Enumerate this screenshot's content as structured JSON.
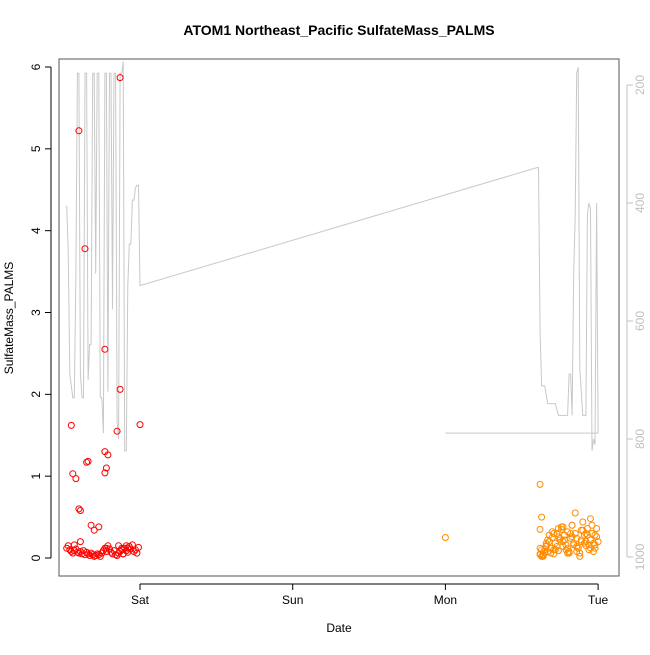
{
  "chart_data": {
    "type": "scatter",
    "title": "ATOM1 Northeast_Pacific SulfateMass_PALMS",
    "xlabel": "Date",
    "ylabel": "SulfateMass_PALMS",
    "x_tick_labels": [
      "Sat",
      "Sun",
      "Mon",
      "Tue"
    ],
    "x_tick_positions_days": [
      1,
      2,
      3,
      4
    ],
    "xlim_days": [
      0.4,
      4.1
    ],
    "ylim": [
      0,
      6
    ],
    "y_ticks": [
      0,
      1,
      2,
      3,
      4,
      5,
      6
    ],
    "y2_ticks": [
      200,
      400,
      600,
      800,
      1000
    ],
    "y2lim": [
      1000,
      170
    ],
    "y2_reversed": true,
    "colors": {
      "series_a": "#ff0000",
      "series_b": "#ff8c00",
      "profile": "#c8c8c8",
      "axis": "#000000",
      "right_axis": "#c0c0c0"
    },
    "series": [
      {
        "x": [
          0.52,
          0.53,
          0.54,
          0.55,
          0.56,
          0.57,
          0.58,
          0.59,
          0.6,
          0.61,
          0.62,
          0.63,
          0.64,
          0.65,
          0.66,
          0.67,
          0.68,
          0.69,
          0.7,
          0.71,
          0.72,
          0.73,
          0.74,
          0.75,
          0.76,
          0.77,
          0.78,
          0.79,
          0.8,
          0.81,
          0.82,
          0.83,
          0.84,
          0.85,
          0.86,
          0.87,
          0.88,
          0.89,
          0.9,
          0.91,
          0.92,
          0.93,
          0.94,
          0.95,
          0.96,
          0.97,
          0.98,
          0.99,
          0.6,
          0.6,
          0.61,
          0.61,
          0.55,
          0.56,
          0.57,
          0.58,
          0.64,
          0.65,
          0.66,
          0.68,
          0.7,
          0.73,
          0.77,
          0.78,
          0.79,
          0.87,
          0.85,
          0.86,
          0.87,
          0.88,
          0.92,
          0.77,
          0.77,
          0.78,
          0.89,
          0.91,
          1.0
        ],
        "y": [
          0.12,
          0.15,
          0.1,
          0.08,
          0.06,
          0.09,
          0.11,
          0.07,
          0.06,
          0.08,
          0.05,
          0.09,
          0.04,
          0.07,
          0.05,
          0.03,
          0.06,
          0.04,
          0.02,
          0.03,
          0.05,
          0.04,
          0.02,
          0.06,
          0.09,
          0.12,
          0.08,
          0.15,
          0.11,
          0.07,
          0.05,
          0.09,
          0.04,
          0.03,
          0.06,
          0.08,
          0.1,
          0.05,
          0.12,
          0.09,
          0.07,
          0.14,
          0.11,
          0.16,
          0.08,
          0.1,
          0.06,
          0.13,
          5.22,
          0.6,
          0.58,
          0.2,
          1.62,
          1.03,
          0.16,
          0.97,
          3.78,
          1.17,
          1.18,
          0.4,
          0.34,
          0.38,
          1.04,
          1.1,
          1.26,
          5.87,
          1.55,
          0.15,
          2.06,
          0.12,
          0.12,
          1.3,
          2.55,
          0.12,
          0.05,
          0.15,
          1.63
        ]
      },
      {
        "x": [
          3.0,
          3.62,
          3.63,
          3.64,
          3.65,
          3.66,
          3.67,
          3.68,
          3.69,
          3.7,
          3.71,
          3.72,
          3.73,
          3.74,
          3.75,
          3.76,
          3.77,
          3.78,
          3.79,
          3.8,
          3.81,
          3.82,
          3.83,
          3.84,
          3.85,
          3.86,
          3.87,
          3.88,
          3.89,
          3.9,
          3.91,
          3.92,
          3.93,
          3.94,
          3.95,
          3.96,
          3.97,
          3.98,
          3.99,
          4.0,
          3.62,
          3.62,
          3.63,
          3.64,
          3.66,
          3.68,
          3.7,
          3.72,
          3.74,
          3.76,
          3.78,
          3.8,
          3.82,
          3.84,
          3.86,
          3.88,
          3.9,
          3.92,
          3.94,
          3.96,
          3.98,
          3.63,
          3.65,
          3.67,
          3.69,
          3.71,
          3.73,
          3.75,
          3.77,
          3.79,
          3.81,
          3.83,
          3.85,
          3.87,
          3.89,
          3.91,
          3.93,
          3.95,
          3.97,
          3.99,
          3.62,
          3.64,
          3.66,
          3.68,
          3.71,
          3.74,
          3.77,
          3.8,
          3.83,
          3.86,
          3.89,
          3.92,
          3.95,
          3.98,
          3.62
        ],
        "y": [
          0.25,
          0.05,
          0.1,
          0.03,
          0.06,
          0.15,
          0.08,
          0.2,
          0.12,
          0.25,
          0.05,
          0.18,
          0.3,
          0.09,
          0.22,
          0.35,
          0.14,
          0.28,
          0.1,
          0.32,
          0.06,
          0.24,
          0.4,
          0.16,
          0.3,
          0.08,
          0.12,
          0.02,
          0.2,
          0.44,
          0.28,
          0.15,
          0.36,
          0.1,
          0.22,
          0.3,
          0.18,
          0.12,
          0.26,
          0.2,
          0.9,
          0.35,
          0.5,
          0.04,
          0.14,
          0.2,
          0.32,
          0.1,
          0.26,
          0.38,
          0.22,
          0.12,
          0.3,
          0.18,
          0.24,
          0.06,
          0.34,
          0.2,
          0.16,
          0.4,
          0.28,
          0.02,
          0.1,
          0.22,
          0.06,
          0.3,
          0.14,
          0.24,
          0.38,
          0.16,
          0.08,
          0.26,
          0.55,
          0.12,
          0.34,
          0.18,
          0.28,
          0.48,
          0.08,
          0.36,
          0.12,
          0.02,
          0.18,
          0.28,
          0.1,
          0.36,
          0.2,
          0.06,
          0.4,
          0.14,
          0.22,
          0.3,
          0.12,
          0.16,
          0.04
        ]
      }
    ],
    "profile_line": {
      "x": [
        0.52,
        0.53,
        0.54,
        0.56,
        0.57,
        0.58,
        0.59,
        0.6,
        0.61,
        0.62,
        0.63,
        0.64,
        0.65,
        0.66,
        0.67,
        0.68,
        0.69,
        0.7,
        0.71,
        0.72,
        0.73,
        0.74,
        0.75,
        0.76,
        0.77,
        0.78,
        0.79,
        0.8,
        0.81,
        0.82,
        0.83,
        0.84,
        0.85,
        0.86,
        0.87,
        0.88,
        0.89,
        0.9,
        0.91,
        0.92,
        0.93,
        0.94,
        0.95,
        0.96,
        0.97,
        0.98,
        0.99,
        1.0,
        3.6,
        3.61,
        3.62,
        3.63,
        3.65,
        3.67,
        3.7,
        3.72,
        3.74,
        3.76,
        3.78,
        3.79,
        3.8,
        3.81,
        3.82,
        3.83,
        3.84,
        3.85,
        3.86,
        3.87,
        3.88,
        3.9,
        3.92,
        3.93,
        3.94,
        3.95,
        3.96,
        3.97,
        3.98,
        3.99,
        4.0,
        4.0,
        3.0,
        3.0
      ],
      "y": [
        405,
        480,
        690,
        730,
        730,
        520,
        180,
        180,
        690,
        730,
        730,
        180,
        180,
        700,
        640,
        640,
        180,
        180,
        520,
        180,
        180,
        730,
        730,
        790,
        180,
        180,
        720,
        180,
        180,
        580,
        180,
        180,
        770,
        800,
        180,
        180,
        160,
        820,
        820,
        540,
        470,
        470,
        395,
        395,
        375,
        370,
        370,
        540,
        340,
        340,
        620,
        710,
        710,
        740,
        740,
        740,
        760,
        760,
        760,
        760,
        760,
        690,
        690,
        760,
        520,
        420,
        180,
        170,
        680,
        760,
        760,
        420,
        400,
        410,
        820,
        800,
        810,
        400,
        790,
        790,
        790,
        790
      ]
    }
  }
}
